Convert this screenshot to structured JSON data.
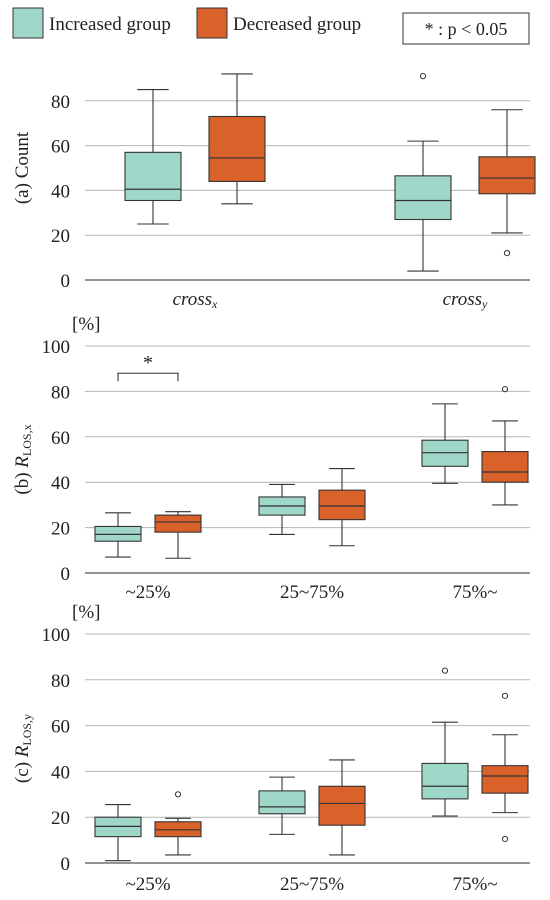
{
  "legend": {
    "items": [
      {
        "label": "Increased group",
        "color": "#9fd8c9"
      },
      {
        "label": "Decreased group",
        "color": "#d9622b"
      }
    ],
    "note": "* : p < 0.05"
  },
  "colors": {
    "increased": "#9fd8c9",
    "decreased": "#d9622b",
    "stroke": "#333333",
    "grid": "#b5b5b5"
  },
  "chart_data": [
    {
      "type": "box",
      "panel_label": "(a) Count",
      "unit_label": "",
      "ylim": [
        0,
        100
      ],
      "yticks": [
        0,
        20,
        40,
        60,
        80
      ],
      "grid": true,
      "categories": [
        {
          "base": "cross",
          "sub": "x"
        },
        {
          "base": "cross",
          "sub": "y"
        }
      ],
      "series": [
        {
          "name": "Increased group",
          "boxes": [
            {
              "min": 25,
              "q1": 35.5,
              "median": 40.5,
              "q3": 57,
              "max": 85,
              "outliers": []
            },
            {
              "min": 4,
              "q1": 27,
              "median": 35.5,
              "q3": 46.5,
              "max": 62,
              "outliers": [
                91
              ]
            }
          ]
        },
        {
          "name": "Decreased group",
          "boxes": [
            {
              "min": 34,
              "q1": 44,
              "median": 54.5,
              "q3": 73,
              "max": 92,
              "outliers": []
            },
            {
              "min": 21,
              "q1": 38.5,
              "median": 45.5,
              "q3": 55,
              "max": 76,
              "outliers": [
                12
              ]
            }
          ]
        }
      ],
      "annotations": []
    },
    {
      "type": "box",
      "panel_label": "(b) ",
      "ylabel_italic": "R",
      "ylabel_sub": "LOS,x",
      "unit_label": "[%]",
      "ylim": [
        0,
        100
      ],
      "yticks": [
        0,
        20,
        40,
        60,
        80,
        100
      ],
      "grid": true,
      "categories": [
        {
          "base": "~25%",
          "sub": ""
        },
        {
          "base": "25~75%",
          "sub": ""
        },
        {
          "base": "75%~",
          "sub": ""
        }
      ],
      "series": [
        {
          "name": "Increased group",
          "boxes": [
            {
              "min": 7,
              "q1": 14,
              "median": 17,
              "q3": 20.5,
              "max": 26.5,
              "outliers": []
            },
            {
              "min": 17,
              "q1": 25.5,
              "median": 29.5,
              "q3": 33.5,
              "max": 39,
              "outliers": []
            },
            {
              "min": 39.5,
              "q1": 47,
              "median": 53,
              "q3": 58.5,
              "max": 74.5,
              "outliers": []
            }
          ]
        },
        {
          "name": "Decreased group",
          "boxes": [
            {
              "min": 6.5,
              "q1": 18,
              "median": 22.5,
              "q3": 25.5,
              "max": 27,
              "outliers": []
            },
            {
              "min": 12,
              "q1": 23.5,
              "median": 29.5,
              "q3": 36.5,
              "max": 46,
              "outliers": []
            },
            {
              "min": 30,
              "q1": 40,
              "median": 44.5,
              "q3": 53.5,
              "max": 67,
              "outliers": [
                81
              ]
            }
          ]
        }
      ],
      "annotations": [
        {
          "category_index": 0,
          "text": "*",
          "y": 88
        }
      ]
    },
    {
      "type": "box",
      "panel_label": "(c) ",
      "ylabel_italic": "R",
      "ylabel_sub": "LOS,y",
      "unit_label": "[%]",
      "ylim": [
        0,
        100
      ],
      "yticks": [
        0,
        20,
        40,
        60,
        80,
        100
      ],
      "grid": true,
      "categories": [
        {
          "base": "~25%",
          "sub": ""
        },
        {
          "base": "25~75%",
          "sub": ""
        },
        {
          "base": "75%~",
          "sub": ""
        }
      ],
      "series": [
        {
          "name": "Increased group",
          "boxes": [
            {
              "min": 1,
              "q1": 11.5,
              "median": 16,
              "q3": 20,
              "max": 25.5,
              "outliers": []
            },
            {
              "min": 12.5,
              "q1": 21.5,
              "median": 24.5,
              "q3": 31.5,
              "max": 37.5,
              "outliers": []
            },
            {
              "min": 20.5,
              "q1": 28,
              "median": 33.5,
              "q3": 43.5,
              "max": 61.5,
              "outliers": [
                84
              ]
            }
          ]
        },
        {
          "name": "Decreased group",
          "boxes": [
            {
              "min": 3.5,
              "q1": 11.5,
              "median": 14.5,
              "q3": 18,
              "max": 19.5,
              "outliers": [
                30
              ]
            },
            {
              "min": 3.5,
              "q1": 16.5,
              "median": 26,
              "q3": 33.5,
              "max": 45,
              "outliers": []
            },
            {
              "min": 22,
              "q1": 30.5,
              "median": 38,
              "q3": 42.5,
              "max": 56,
              "outliers": [
                73,
                10.5
              ]
            }
          ]
        }
      ],
      "annotations": []
    }
  ]
}
